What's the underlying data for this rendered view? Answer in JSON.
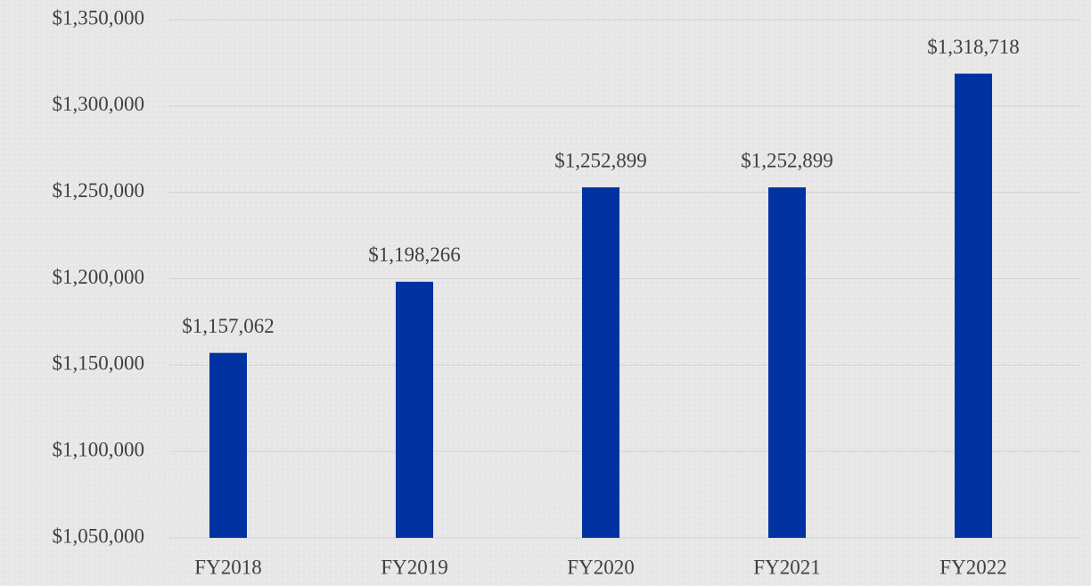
{
  "chart_data": {
    "type": "bar",
    "categories": [
      "FY2018",
      "FY2019",
      "FY2020",
      "FY2021",
      "FY2022"
    ],
    "values": [
      1157062,
      1198266,
      1252899,
      1252899,
      1318718
    ],
    "value_labels": [
      "$1,157,062",
      "$1,198,266",
      "$1,252,899",
      "$1,252,899",
      "$1,318,718"
    ],
    "color": "#0033a1",
    "ylim": [
      1050000,
      1350000
    ],
    "yticks": [
      {
        "value": 1050000,
        "label": "$1,050,000"
      },
      {
        "value": 1100000,
        "label": "$1,100,000"
      },
      {
        "value": 1150000,
        "label": "$1,150,000"
      },
      {
        "value": 1200000,
        "label": "$1,200,000"
      },
      {
        "value": 1250000,
        "label": "$1,250,000"
      },
      {
        "value": 1300000,
        "label": "$1,300,000"
      },
      {
        "value": 1350000,
        "label": "$1,350,000"
      }
    ],
    "grid": true
  }
}
